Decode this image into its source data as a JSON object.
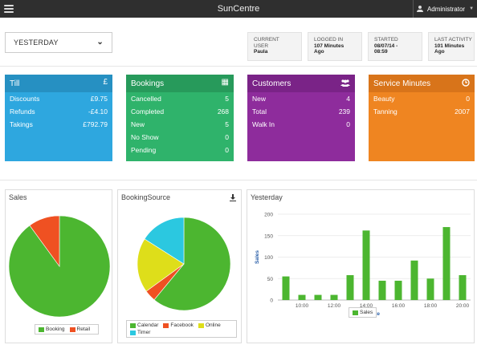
{
  "app": {
    "title": "SunCentre",
    "user_menu_label": "Administrator"
  },
  "period_selector": {
    "value": "YESTERDAY"
  },
  "session_info": [
    {
      "label_1": "CURRENT",
      "label_2": "USER",
      "value_1": "Paula",
      "value_2": ""
    },
    {
      "label_1": "LOGGED IN",
      "label_2": "",
      "value_1": "107 Minutes",
      "value_2": "Ago"
    },
    {
      "label_1": "STARTED",
      "label_2": "",
      "value_1": "08/07/14 -",
      "value_2": "08:59"
    },
    {
      "label_1": "LAST ACTIVITY",
      "label_2": "",
      "value_1": "101 Minutes",
      "value_2": "Ago"
    }
  ],
  "tiles": [
    {
      "title": "Till",
      "icon": "pound-icon",
      "icon_glyph": "£",
      "color": "#2ea7df",
      "rows": [
        {
          "label": "Discounts",
          "value": "£9.75"
        },
        {
          "label": "Refunds",
          "value": "-£4.10"
        },
        {
          "label": "Takings",
          "value": "£792.79"
        }
      ]
    },
    {
      "title": "Bookings",
      "icon": "calendar-icon",
      "icon_glyph": "▦",
      "color": "#2fb36b",
      "rows": [
        {
          "label": "Cancelled",
          "value": "5"
        },
        {
          "label": "Completed",
          "value": "268"
        },
        {
          "label": "New",
          "value": "5"
        },
        {
          "label": "No Show",
          "value": "0"
        },
        {
          "label": "Pending",
          "value": "0"
        }
      ]
    },
    {
      "title": "Customers",
      "icon": "users-icon",
      "icon_glyph": "👥",
      "color": "#8e2c9c",
      "rows": [
        {
          "label": "New",
          "value": "4"
        },
        {
          "label": "Total",
          "value": "239"
        },
        {
          "label": "Walk In",
          "value": "0"
        }
      ]
    },
    {
      "title": "Service Minutes",
      "icon": "clock-icon",
      "icon_glyph": "◷",
      "color": "#ef8521",
      "rows": [
        {
          "label": "Beauty",
          "value": "0"
        },
        {
          "label": "Tanning",
          "value": "2007"
        }
      ]
    }
  ],
  "panels": {
    "sales_title": "Sales",
    "booking_source_title": "BookingSource",
    "yesterday_title": "Yesterday"
  },
  "chart_data": [
    {
      "type": "pie",
      "title": "Sales",
      "labels": [
        "Booking",
        "Retail"
      ],
      "values": [
        90,
        10
      ],
      "colors": [
        "#4cb630",
        "#ef5122"
      ]
    },
    {
      "type": "pie",
      "title": "BookingSource",
      "labels": [
        "Calendar",
        "Facebook",
        "Online",
        "Timer"
      ],
      "values": [
        61,
        4,
        19,
        16
      ],
      "colors": [
        "#4cb630",
        "#ef5122",
        "#dede1a",
        "#2bc8e0"
      ]
    },
    {
      "type": "bar",
      "title": "Yesterday",
      "xlabel": "Date",
      "ylabel": "Sales",
      "ylim": [
        0,
        200
      ],
      "yticks": [
        "0",
        "50",
        "100",
        "150",
        "200"
      ],
      "xticks": [
        "10:00",
        "12:00",
        "14:00",
        "16:00",
        "18:00",
        "20:00"
      ],
      "x": [
        "09:00",
        "10:00",
        "11:00",
        "12:00",
        "13:00",
        "14:00",
        "15:00",
        "16:00",
        "17:00",
        "18:00",
        "19:00",
        "20:00"
      ],
      "series": [
        {
          "name": "Sales",
          "color": "#4cb630",
          "values": [
            55,
            12,
            12,
            12,
            58,
            162,
            45,
            45,
            92,
            50,
            170,
            58
          ]
        }
      ],
      "grid": true,
      "legend": "bottom-center"
    }
  ]
}
